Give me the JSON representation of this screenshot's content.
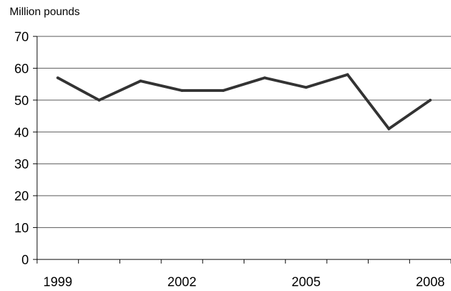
{
  "chart_data": {
    "type": "line",
    "ylabel": "Million pounds",
    "ylim": [
      0,
      70
    ],
    "yticks": [
      0,
      10,
      20,
      30,
      40,
      50,
      60,
      70
    ],
    "x": [
      "1999",
      "2000",
      "2001",
      "2002",
      "2003",
      "2004",
      "2005",
      "2006",
      "2007",
      "2008"
    ],
    "xtick_labels": [
      "1999",
      "2002",
      "2005",
      "2008"
    ],
    "grid": true,
    "series": [
      {
        "values": [
          57,
          50,
          56,
          53,
          53,
          57,
          54,
          58,
          41,
          50
        ]
      }
    ],
    "colors": {
      "line": "#333333",
      "grid": "#555555",
      "axis": "#000000"
    }
  }
}
